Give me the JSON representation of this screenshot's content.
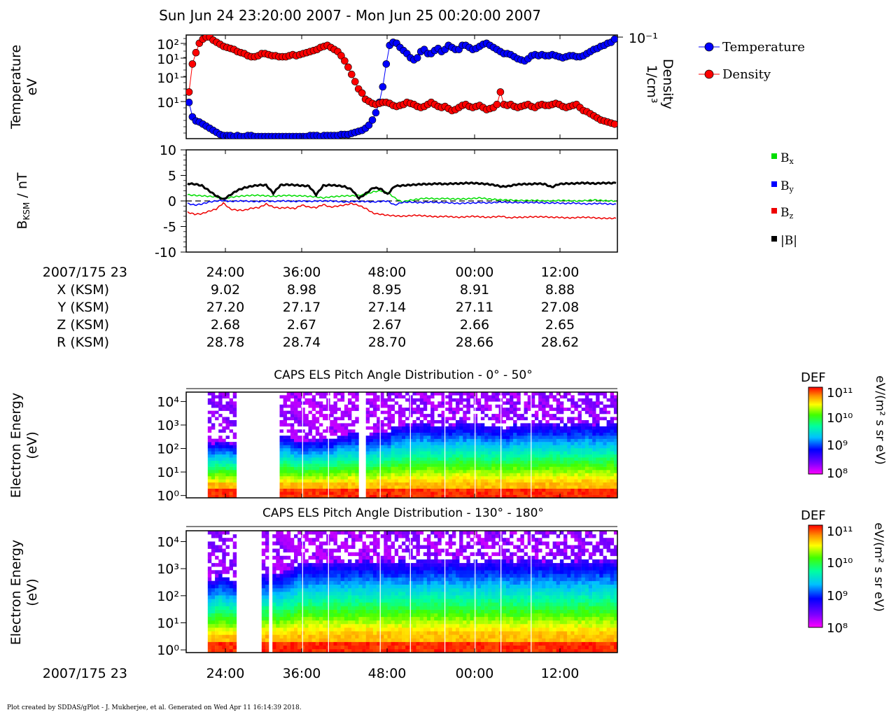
{
  "figure": {
    "title": "Sun Jun 24 23:20:00 2007 - Mon Jun 25 00:20:00 2007",
    "footer": "Plot created by SDDAS/gPlot - J. Mukherjee, et al.  Generated on Wed Apr 11 16:14:39 2018."
  },
  "ephemeris": {
    "time_label": "2007/175 23",
    "tick_labels": [
      "24:00",
      "36:00",
      "48:00",
      "00:00",
      "12:00"
    ],
    "rows": [
      {
        "label": "X (KSM)",
        "values": [
          "9.02",
          "8.98",
          "8.95",
          "8.91",
          "8.88"
        ]
      },
      {
        "label": "Y (KSM)",
        "values": [
          "27.20",
          "27.17",
          "27.14",
          "27.11",
          "27.08"
        ]
      },
      {
        "label": "Z (KSM)",
        "values": [
          "2.68",
          "2.67",
          "2.67",
          "2.66",
          "2.65"
        ]
      },
      {
        "label": "R (KSM)",
        "values": [
          "28.78",
          "28.74",
          "28.70",
          "28.66",
          "28.62"
        ]
      }
    ]
  },
  "bottom_axis": {
    "time_label": "2007/175 23",
    "tick_labels": [
      "24:00",
      "36:00",
      "48:00",
      "00:00",
      "12:00"
    ]
  },
  "colors": {
    "temperature": "#0000ff",
    "density": "#ff0000",
    "bx": "#00dd00",
    "by": "#0000ff",
    "bz": "#ee0000",
    "bmag": "#000000"
  },
  "chart_data": [
    {
      "type": "scatter",
      "panel": "moments",
      "ylabel_lines": [
        "Temperature",
        "eV"
      ],
      "y2label_lines": [
        "Density",
        "1/cm³"
      ],
      "y_tick_labels": [
        "10²",
        "10¹",
        "10¹",
        "10¹"
      ],
      "y2_tick_labels": [
        "10⁻¹"
      ],
      "legend": [
        "Temperature",
        "Density"
      ],
      "x_range_minutes": [
        0,
        60
      ],
      "scale": "log",
      "series": [
        {
          "name": "Temperature",
          "y": [
            0.35,
            0.21,
            0.17,
            0.16,
            0.14,
            0.12,
            0.1,
            0.08,
            0.06,
            0.04,
            0.03,
            0.03,
            0.03,
            0.02,
            0.03,
            0.02,
            0.02,
            0.03,
            0.03,
            0.02,
            0.02,
            0.02,
            0.02,
            0.02,
            0.02,
            0.02,
            0.02,
            0.02,
            0.02,
            0.02,
            0.02,
            0.02,
            0.02,
            0.02,
            0.02,
            0.03,
            0.03,
            0.03,
            0.02,
            0.03,
            0.03,
            0.03,
            0.03,
            0.03,
            0.04,
            0.04,
            0.04,
            0.05,
            0.06,
            0.07,
            0.08,
            0.1,
            0.13,
            0.18,
            0.25,
            0.35,
            0.5,
            0.72,
            0.9,
            0.93,
            0.92,
            0.88,
            0.85,
            0.82,
            0.78,
            0.76,
            0.78,
            0.84,
            0.86,
            0.82,
            0.82,
            0.85,
            0.87,
            0.84,
            0.86,
            0.9,
            0.88,
            0.86,
            0.86,
            0.9,
            0.9,
            0.88,
            0.86,
            0.87,
            0.89,
            0.91,
            0.92,
            0.9,
            0.88,
            0.86,
            0.84,
            0.82,
            0.82,
            0.81,
            0.79,
            0.77,
            0.76,
            0.75,
            0.77,
            0.8,
            0.81,
            0.8,
            0.81,
            0.8,
            0.8,
            0.81,
            0.8,
            0.79,
            0.78,
            0.79,
            0.8,
            0.8,
            0.79,
            0.79,
            0.8,
            0.82,
            0.84,
            0.86,
            0.87,
            0.89,
            0.9,
            0.92,
            0.93,
            0.96
          ]
        },
        {
          "name": "Density",
          "y": [
            0.45,
            0.72,
            0.83,
            0.92,
            0.96,
            0.98,
            0.98,
            0.95,
            0.93,
            0.91,
            0.89,
            0.88,
            0.87,
            0.86,
            0.84,
            0.83,
            0.82,
            0.8,
            0.79,
            0.79,
            0.8,
            0.82,
            0.82,
            0.81,
            0.8,
            0.8,
            0.79,
            0.79,
            0.79,
            0.8,
            0.81,
            0.8,
            0.81,
            0.82,
            0.83,
            0.84,
            0.85,
            0.86,
            0.88,
            0.89,
            0.9,
            0.88,
            0.86,
            0.84,
            0.8,
            0.75,
            0.69,
            0.62,
            0.55,
            0.48,
            0.44,
            0.38,
            0.36,
            0.34,
            0.33,
            0.34,
            0.35,
            0.35,
            0.34,
            0.32,
            0.31,
            0.32,
            0.33,
            0.35,
            0.34,
            0.33,
            0.31,
            0.3,
            0.31,
            0.33,
            0.35,
            0.33,
            0.31,
            0.3,
            0.31,
            0.29,
            0.27,
            0.28,
            0.3,
            0.32,
            0.33,
            0.31,
            0.3,
            0.31,
            0.32,
            0.3,
            0.28,
            0.29,
            0.3,
            0.33,
            0.45,
            0.33,
            0.32,
            0.33,
            0.31,
            0.3,
            0.31,
            0.32,
            0.33,
            0.31,
            0.3,
            0.32,
            0.33,
            0.32,
            0.32,
            0.33,
            0.34,
            0.33,
            0.31,
            0.3,
            0.31,
            0.32,
            0.33,
            0.3,
            0.27,
            0.26,
            0.24,
            0.22,
            0.2,
            0.18,
            0.17,
            0.16,
            0.15,
            0.14
          ]
        }
      ]
    },
    {
      "type": "line",
      "panel": "magnetometer",
      "ylabel": "BKSM / nT",
      "ylim": [
        -10,
        10
      ],
      "y_ticks": [
        10,
        5,
        0,
        -5,
        -10
      ],
      "x_range_minutes": [
        0,
        60
      ],
      "legend": [
        "Bx",
        "By",
        "Bz",
        "|B|"
      ],
      "series": [
        {
          "name": "Bx",
          "y": [
            1.2,
            1.1,
            1.0,
            0.9,
            0.8,
            0.5,
            0.7,
            0.9,
            1.0,
            1.1,
            1.1,
            1.0,
            0.9,
            1.0,
            1.1,
            1.0,
            1.0,
            0.9,
            0.8,
            0.6,
            0.8,
            0.9,
            1.0,
            1.0,
            1.1,
            1.3,
            1.8,
            2.0,
            1.7,
            0.6,
            -0.2,
            0.1,
            0.3,
            0.5,
            0.5,
            0.4,
            0.5,
            0.4,
            0.4,
            0.4,
            0.5,
            0.6,
            0.4,
            0.3,
            0.2,
            0.2,
            0.1,
            0.1,
            0.1,
            0.1,
            0.0,
            0.0,
            0.1,
            0.1,
            0.0,
            0.0,
            0.1,
            0.2,
            0.1,
            0.0,
            0.0
          ]
        },
        {
          "name": "By",
          "y": [
            -0.5,
            -0.8,
            -0.6,
            -0.2,
            0.0,
            0.1,
            -0.1,
            0.0,
            0.0,
            -0.1,
            -0.1,
            0.0,
            -0.1,
            0.0,
            0.0,
            -0.1,
            0.0,
            -0.1,
            0.0,
            0.0,
            0.0,
            -0.1,
            -0.2,
            -0.1,
            -0.1,
            -0.1,
            -0.2,
            -0.1,
            0.0,
            -0.8,
            -0.3,
            -0.2,
            -0.3,
            -0.3,
            -0.2,
            -0.3,
            -0.3,
            -0.4,
            -0.5,
            -0.4,
            -0.4,
            -0.3,
            -0.4,
            -0.3,
            -0.2,
            -0.3,
            -0.3,
            -0.3,
            -0.3,
            -0.3,
            -0.4,
            -0.4,
            -0.4,
            -0.5,
            -0.4,
            -0.5,
            -0.6,
            -0.5,
            -0.5,
            -0.6,
            -0.6
          ]
        },
        {
          "name": "Bz",
          "y": [
            -2.2,
            -2.6,
            -2.5,
            -2.0,
            -1.6,
            -0.4,
            -1.6,
            -1.8,
            -1.8,
            -1.4,
            -1.3,
            -0.6,
            -1.2,
            -1.4,
            -1.3,
            -1.5,
            -0.8,
            -1.2,
            -1.3,
            -0.7,
            -1.2,
            -1.0,
            -0.8,
            -0.5,
            -0.9,
            -1.5,
            -2.4,
            -2.6,
            -2.8,
            -2.9,
            -3.0,
            -2.9,
            -2.8,
            -2.9,
            -3.0,
            -3.1,
            -3.0,
            -3.1,
            -3.2,
            -3.1,
            -3.0,
            -3.1,
            -3.2,
            -3.1,
            -3.0,
            -3.3,
            -3.2,
            -3.2,
            -3.1,
            -3.1,
            -3.1,
            -3.2,
            -3.2,
            -3.3,
            -3.3,
            -3.2,
            -3.2,
            -3.3,
            -3.4,
            -3.4,
            -3.4
          ]
        },
        {
          "name": "|B|",
          "y": [
            3.4,
            3.3,
            3.0,
            2.0,
            1.0,
            0.3,
            1.2,
            2.1,
            2.6,
            2.9,
            3.1,
            3.1,
            1.5,
            3.1,
            3.2,
            3.1,
            3.0,
            2.9,
            1.2,
            3.0,
            3.1,
            3.0,
            2.8,
            2.2,
            0.5,
            1.5,
            2.6,
            2.4,
            1.3,
            2.9,
            3.0,
            3.1,
            3.2,
            3.3,
            3.3,
            3.4,
            3.3,
            3.4,
            3.4,
            3.5,
            3.5,
            3.4,
            3.3,
            3.1,
            2.8,
            2.9,
            3.2,
            3.3,
            3.3,
            3.4,
            3.3,
            2.7,
            3.3,
            3.4,
            3.4,
            3.5,
            3.5,
            3.4,
            3.5,
            3.5,
            3.5
          ]
        }
      ]
    },
    {
      "type": "heatmap",
      "panel": "els_0_50",
      "title": "CAPS ELS Pitch Angle Distribution - 0° - 50°",
      "ylabel_lines": [
        "Electron Energy",
        "(eV)"
      ],
      "y_tick_labels": [
        "10⁴",
        "10³",
        "10²",
        "10¹",
        "10⁰"
      ],
      "colorbar": {
        "title": "DEF",
        "units": "eV/(m² s sr eV)",
        "tick_labels": [
          "10¹¹",
          "10¹⁰",
          "10⁹",
          "10⁸"
        ]
      },
      "data_gaps_minutes": [
        [
          0,
          3
        ],
        [
          6.8,
          13
        ],
        [
          23.8,
          25
        ]
      ],
      "cutoff_log_energy": [
        2.1,
        2.2,
        2.3,
        2.2,
        2.3,
        2.4,
        2.5,
        2.5,
        2.3,
        2.4,
        2.4,
        2.6,
        2.7,
        2.6,
        2.7,
        3.0,
        3.0,
        3.1,
        3.0,
        3.0,
        3.1,
        3.0,
        3.0,
        2.9,
        3.0,
        3.0,
        3.1,
        3.0,
        3.0,
        3.1,
        3.0,
        3.1
      ]
    },
    {
      "type": "heatmap",
      "panel": "els_130_180",
      "title": "CAPS ELS Pitch Angle Distribution - 130° - 180°",
      "ylabel_lines": [
        "Electron Energy",
        "(eV)"
      ],
      "y_tick_labels": [
        "10⁴",
        "10³",
        "10²",
        "10¹",
        "10⁰"
      ],
      "colorbar": {
        "title": "DEF",
        "units": "eV/(m² s sr eV)",
        "tick_labels": [
          "10¹¹",
          "10¹⁰",
          "10⁹",
          "10⁸"
        ]
      },
      "data_gaps_minutes": [
        [
          0,
          3
        ],
        [
          6.8,
          10.3
        ],
        [
          11.2,
          11.6
        ]
      ],
      "cutoff_log_energy": [
        2.6,
        2.6,
        2.7,
        2.6,
        2.7,
        2.8,
        2.8,
        3.0,
        3.2,
        3.2,
        3.3,
        3.3,
        3.3,
        3.3,
        3.3,
        3.3,
        3.3,
        3.3,
        3.3,
        3.3,
        3.3,
        3.3,
        3.3,
        3.3,
        3.3,
        3.3,
        3.3,
        3.3,
        3.3,
        3.3,
        3.3,
        3.3
      ]
    }
  ]
}
